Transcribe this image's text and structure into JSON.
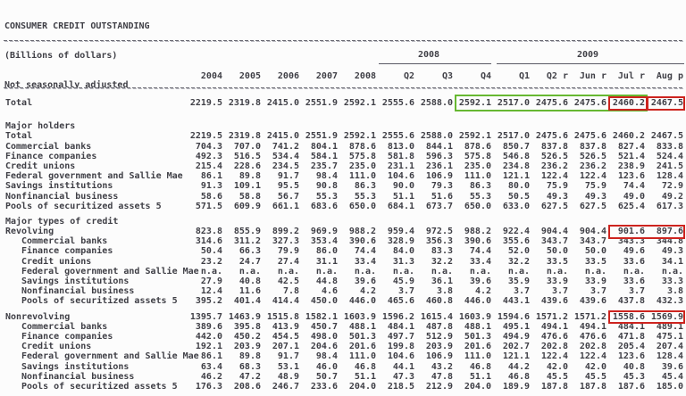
{
  "report": {
    "title": "CONSUMER CREDIT OUTSTANDING",
    "subtitle": "(Billions of dollars)",
    "adjustment_note": "Not seasonally adjusted"
  },
  "colors": {
    "highlight_green": "#67b832",
    "highlight_red": "#cd241f"
  },
  "table": {
    "year_groups": [
      {
        "label": "2008"
      },
      {
        "label": "2009"
      }
    ],
    "columns": [
      "2004",
      "2005",
      "2006",
      "2007",
      "2008",
      "Q2",
      "Q3",
      "Q4",
      "Q1",
      "Q2 r",
      "Jun r",
      "Jul r",
      "Aug p"
    ],
    "rows": [
      {
        "type": "data",
        "indent": 0,
        "label": "Total",
        "values": [
          "2219.5",
          "2319.8",
          "2415.0",
          "2551.9",
          "2592.1",
          "2555.6",
          "2588.0",
          "2592.1",
          "2517.0",
          "2475.6",
          "2475.6",
          "2460.2",
          "2467.5"
        ]
      },
      {
        "type": "spacer",
        "tall": true,
        "label": ""
      },
      {
        "type": "section",
        "indent": 0,
        "label": "Major holders"
      },
      {
        "type": "data",
        "indent": 0,
        "label": "Total",
        "values": [
          "2219.5",
          "2319.8",
          "2415.0",
          "2551.9",
          "2592.1",
          "2555.6",
          "2588.0",
          "2592.1",
          "2517.0",
          "2475.6",
          "2475.6",
          "2460.2",
          "2467.5"
        ]
      },
      {
        "type": "data",
        "indent": 0,
        "label": "Commercial banks",
        "values": [
          "704.3",
          "707.0",
          "741.2",
          "804.1",
          "878.6",
          "813.0",
          "844.1",
          "878.6",
          "850.7",
          "837.8",
          "837.8",
          "827.4",
          "833.8"
        ]
      },
      {
        "type": "data",
        "indent": 0,
        "label": "Finance companies",
        "values": [
          "492.3",
          "516.5",
          "534.4",
          "584.1",
          "575.8",
          "581.8",
          "596.3",
          "575.8",
          "546.8",
          "526.5",
          "526.5",
          "521.4",
          "524.4"
        ]
      },
      {
        "type": "data",
        "indent": 0,
        "label": "Credit unions",
        "values": [
          "215.4",
          "228.6",
          "234.5",
          "235.7",
          "235.0",
          "231.1",
          "236.1",
          "235.0",
          "234.8",
          "236.2",
          "236.2",
          "238.9",
          "241.5"
        ]
      },
      {
        "type": "data",
        "indent": 0,
        "label": "Federal government and Sallie Mae",
        "values": [
          "86.1",
          "89.8",
          "91.7",
          "98.4",
          "111.0",
          "104.6",
          "106.9",
          "111.0",
          "121.1",
          "122.4",
          "122.4",
          "123.6",
          "128.4"
        ]
      },
      {
        "type": "data",
        "indent": 0,
        "label": "Savings institutions",
        "values": [
          "91.3",
          "109.1",
          "95.5",
          "90.8",
          "86.3",
          "90.0",
          "79.3",
          "86.3",
          "80.0",
          "75.9",
          "75.9",
          "74.4",
          "72.9"
        ]
      },
      {
        "type": "data",
        "indent": 0,
        "label": "Nonfinancial business",
        "values": [
          "58.6",
          "58.8",
          "56.7",
          "55.3",
          "55.3",
          "51.1",
          "51.6",
          "55.3",
          "50.5",
          "49.3",
          "49.3",
          "49.0",
          "49.2"
        ]
      },
      {
        "type": "data",
        "indent": 0,
        "label": "Pools of securitized assets 5",
        "values": [
          "571.5",
          "609.9",
          "661.1",
          "683.6",
          "650.0",
          "684.1",
          "673.7",
          "650.0",
          "633.0",
          "627.5",
          "627.5",
          "625.4",
          "617.3"
        ]
      },
      {
        "type": "spacer",
        "label": ""
      },
      {
        "type": "section",
        "indent": 0,
        "label": "Major types of credit"
      },
      {
        "type": "data",
        "indent": 0,
        "label": "Revolving",
        "values": [
          "823.8",
          "855.9",
          "899.2",
          "969.9",
          "988.2",
          "959.4",
          "972.5",
          "988.2",
          "922.4",
          "904.4",
          "904.4",
          "901.6",
          "897.6"
        ]
      },
      {
        "type": "data",
        "indent": 1,
        "label": "Commercial banks",
        "values": [
          "314.6",
          "311.2",
          "327.3",
          "353.4",
          "390.6",
          "328.9",
          "356.3",
          "390.6",
          "355.6",
          "343.7",
          "343.7",
          "343.3",
          "344.8"
        ]
      },
      {
        "type": "data",
        "indent": 1,
        "label": "Finance companies",
        "values": [
          "50.4",
          "66.3",
          "79.9",
          "86.0",
          "74.4",
          "84.0",
          "83.3",
          "74.4",
          "52.0",
          "50.0",
          "50.0",
          "49.6",
          "49.3"
        ]
      },
      {
        "type": "data",
        "indent": 1,
        "label": "Credit unions",
        "values": [
          "23.2",
          "24.7",
          "27.4",
          "31.1",
          "33.4",
          "31.3",
          "32.2",
          "33.4",
          "32.2",
          "33.5",
          "33.5",
          "33.6",
          "34.1"
        ]
      },
      {
        "type": "data",
        "indent": 1,
        "label": "Federal government and Sallie Mae",
        "values": [
          "n.a.",
          "n.a.",
          "n.a.",
          "n.a.",
          "n.a.",
          "n.a.",
          "n.a.",
          "n.a.",
          "n.a.",
          "n.a.",
          "n.a.",
          "n.a.",
          "n.a."
        ]
      },
      {
        "type": "data",
        "indent": 1,
        "label": "Savings institutions",
        "values": [
          "27.9",
          "40.8",
          "42.5",
          "44.8",
          "39.6",
          "45.9",
          "36.1",
          "39.6",
          "35.9",
          "33.9",
          "33.9",
          "33.6",
          "33.3"
        ]
      },
      {
        "type": "data",
        "indent": 1,
        "label": "Nonfinancial business",
        "values": [
          "12.4",
          "11.6",
          "7.8",
          "4.6",
          "4.2",
          "3.7",
          "3.8",
          "4.2",
          "3.7",
          "3.7",
          "3.7",
          "3.7",
          "3.8"
        ]
      },
      {
        "type": "data",
        "indent": 1,
        "label": "Pools of securitized assets 5",
        "values": [
          "395.2",
          "401.4",
          "414.4",
          "450.0",
          "446.0",
          "465.6",
          "460.8",
          "446.0",
          "443.1",
          "439.6",
          "439.6",
          "437.8",
          "432.3"
        ]
      },
      {
        "type": "spacer",
        "label": ""
      },
      {
        "type": "data",
        "indent": 0,
        "label": "Nonrevolving",
        "values": [
          "1395.7",
          "1463.9",
          "1515.8",
          "1582.1",
          "1603.9",
          "1596.2",
          "1615.4",
          "1603.9",
          "1594.6",
          "1571.2",
          "1571.2",
          "1558.6",
          "1569.9"
        ]
      },
      {
        "type": "data",
        "indent": 1,
        "label": "Commercial banks",
        "values": [
          "389.6",
          "395.8",
          "413.9",
          "450.7",
          "488.1",
          "484.1",
          "487.8",
          "488.1",
          "495.1",
          "494.1",
          "494.1",
          "484.1",
          "489.1"
        ]
      },
      {
        "type": "data",
        "indent": 1,
        "label": "Finance companies",
        "values": [
          "442.0",
          "450.2",
          "454.5",
          "498.0",
          "501.3",
          "497.7",
          "512.9",
          "501.3",
          "494.9",
          "476.6",
          "476.6",
          "471.8",
          "475.1"
        ]
      },
      {
        "type": "data",
        "indent": 1,
        "label": "Credit unions",
        "values": [
          "192.1",
          "203.9",
          "207.1",
          "204.6",
          "201.6",
          "199.8",
          "203.9",
          "201.6",
          "202.7",
          "202.8",
          "202.8",
          "205.4",
          "207.4"
        ]
      },
      {
        "type": "data",
        "indent": 1,
        "label": "Federal government and Sallie Mae",
        "values": [
          "86.1",
          "89.8",
          "91.7",
          "98.4",
          "111.0",
          "104.6",
          "106.9",
          "111.0",
          "121.1",
          "122.4",
          "122.4",
          "123.6",
          "128.4"
        ]
      },
      {
        "type": "data",
        "indent": 1,
        "label": "Savings institutions",
        "values": [
          "63.4",
          "68.3",
          "53.1",
          "46.0",
          "46.8",
          "44.1",
          "43.2",
          "46.8",
          "44.2",
          "42.0",
          "42.0",
          "40.8",
          "39.6"
        ]
      },
      {
        "type": "data",
        "indent": 1,
        "label": "Nonfinancial business",
        "values": [
          "46.2",
          "47.2",
          "48.9",
          "50.7",
          "51.1",
          "47.3",
          "47.8",
          "51.1",
          "46.8",
          "45.5",
          "45.5",
          "45.3",
          "45.4"
        ]
      },
      {
        "type": "data",
        "indent": 1,
        "label": "Pools of securitized assets 5",
        "values": [
          "176.3",
          "208.6",
          "246.7",
          "233.6",
          "204.0",
          "218.5",
          "212.9",
          "204.0",
          "189.9",
          "187.8",
          "187.8",
          "187.6",
          "185.0"
        ]
      }
    ]
  },
  "highlights": [
    {
      "color": "green",
      "row": 0,
      "col_start": 7,
      "col_end": 11
    },
    {
      "color": "red",
      "row": 0,
      "col_start": 11,
      "col_end": 11
    },
    {
      "color": "red",
      "row": 0,
      "col_start": 12,
      "col_end": 12
    },
    {
      "color": "red",
      "row": 13,
      "col_start": 11,
      "col_end": 12
    },
    {
      "color": "red",
      "row": 22,
      "col_start": 11,
      "col_end": 12
    }
  ]
}
